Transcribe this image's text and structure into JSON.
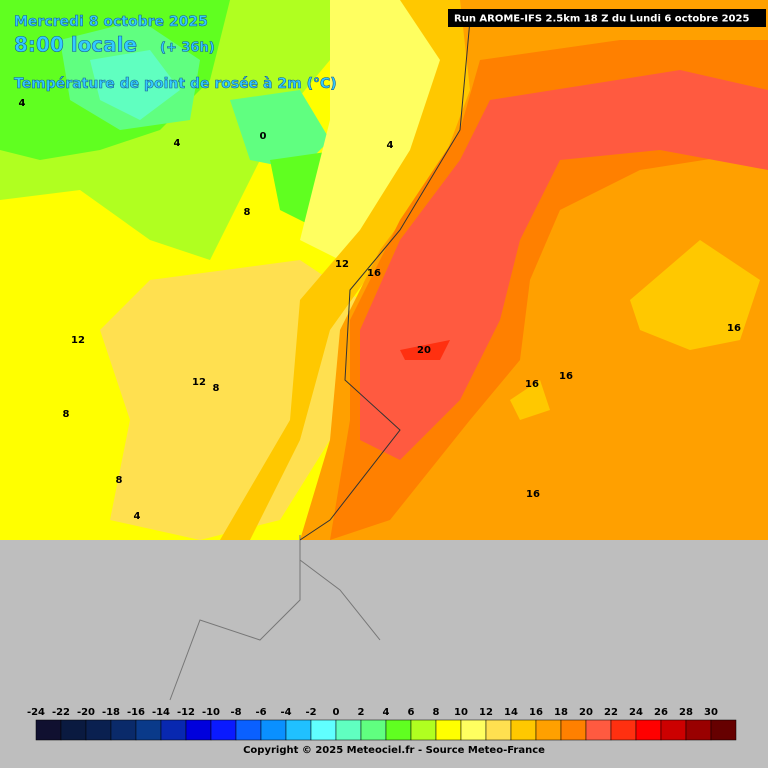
{
  "header": {
    "date": "Mercredi 8 octobre 2025",
    "time": "8:00 locale",
    "lead": "(+ 36h)",
    "parameter": "Température de point de rosée à 2m (°C)",
    "run": "Run AROME-IFS 2.5km 18 Z du Lundi 6 octobre 2025"
  },
  "map_labels": [
    4,
    4,
    0,
    4,
    8,
    12,
    16,
    20,
    12,
    12,
    8,
    8,
    8,
    4,
    16,
    16,
    16,
    16
  ],
  "legend": {
    "labels": [
      -24,
      -22,
      -20,
      -18,
      -16,
      -14,
      -12,
      -10,
      -8,
      -6,
      -4,
      -2,
      0,
      2,
      4,
      6,
      8,
      10,
      12,
      14,
      16,
      18,
      20,
      22,
      24,
      26,
      28,
      30
    ],
    "colors": [
      "#101030",
      "#0a1a40",
      "#0a2050",
      "#0a2a6a",
      "#0a3a8a",
      "#0828b0",
      "#0000dd",
      "#0a1aff",
      "#0a60ff",
      "#0a90ff",
      "#20c0ff",
      "#60ffff",
      "#60ffc0",
      "#60ff80",
      "#60ff20",
      "#b0ff20",
      "#ffff00",
      "#ffff60",
      "#ffe050",
      "#ffc800",
      "#ffa000",
      "#ff8000",
      "#ff5a40",
      "#ff3010",
      "#ff0000",
      "#cc0000",
      "#990000",
      "#660000"
    ]
  },
  "footer": "Copyright © 2025 Meteociel.fr - Source Meteo-France"
}
